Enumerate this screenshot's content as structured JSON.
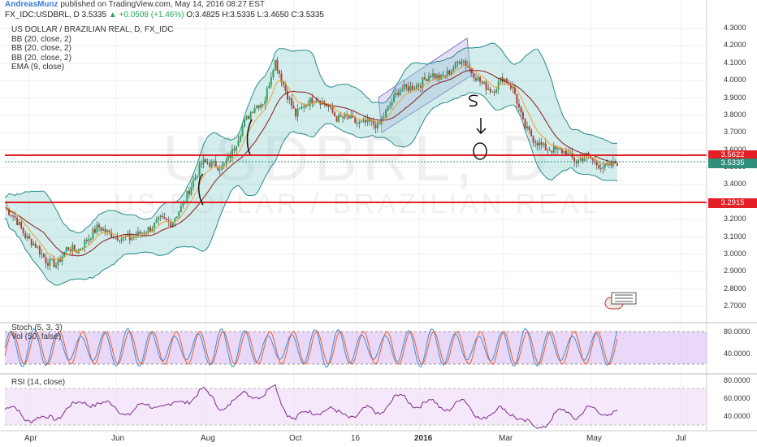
{
  "header": {
    "author": "AndreasMunz",
    "published": "published on TradingView.com, May 14, 2016 08:27 EST"
  },
  "symbol_line": {
    "symbol": "FX_IDC:USDBRL, D",
    "last": "3.5335",
    "change": "+0.0508 (+1.46%)",
    "ohlc": "O:3.4825 H:3.5335 L:3.4650 C:3.5335"
  },
  "legend": {
    "title": "US DOLLAR / BRAZILIAN REAL, D, FX_IDC",
    "bb1": "BB (20, close, 2)",
    "bb2": "BB (20, close, 2)",
    "bb3": "BB (20, close, 2)",
    "ema": "EMA (9, close)"
  },
  "watermark": {
    "big": "USDBRL, D",
    "small": "US DOLLAR / BRAZILIAN REAL"
  },
  "stoch": {
    "title": "Stoch (5, 3, 3)",
    "vol": "Vol (50, false)"
  },
  "rsi": {
    "title": "RSI (14, close)"
  },
  "colors": {
    "up": "#26a65b",
    "down": "#c0392b",
    "band": "#8fd3cf",
    "bandLine": "#2a8a8a",
    "ema": "#f0a030",
    "basis": "#8b1a1a",
    "hline": "#e31e24",
    "channel": "#b0a6e6",
    "stochK": "#3a8fd9",
    "stochD": "#e86030",
    "rsi": "#7b2d8e",
    "current": "#2f8f7a"
  },
  "chart_data": [
    {
      "type": "candlestick",
      "pane": "price",
      "ylim": [
        2.63,
        4.33
      ],
      "y_ticks": [
        "4.3000",
        "4.2000",
        "4.1000",
        "4.0000",
        "3.9000",
        "3.8000",
        "3.7000",
        "3.6000",
        "3.5000",
        "3.4000",
        "3.3000",
        "3.2000",
        "3.1000",
        "3.0000",
        "2.9000",
        "2.8000",
        "2.7000"
      ],
      "x_ticks": [
        "Apr",
        "Jun",
        "Aug",
        "Oct",
        "16",
        "2016",
        "Mar",
        "May",
        "Jul"
      ],
      "series_close": [
        [
          "2015-03-23",
          3.27
        ],
        [
          "2015-03-30",
          3.21
        ],
        [
          "2015-04-06",
          3.1
        ],
        [
          "2015-04-13",
          3.05
        ],
        [
          "2015-04-20",
          2.96
        ],
        [
          "2015-04-27",
          2.94
        ],
        [
          "2015-05-04",
          3.04
        ],
        [
          "2015-05-11",
          3.02
        ],
        [
          "2015-05-18",
          3.09
        ],
        [
          "2015-05-25",
          3.16
        ],
        [
          "2015-06-01",
          3.12
        ],
        [
          "2015-06-08",
          3.1
        ],
        [
          "2015-06-15",
          3.09
        ],
        [
          "2015-06-22",
          3.12
        ],
        [
          "2015-06-29",
          3.15
        ],
        [
          "2015-07-06",
          3.2
        ],
        [
          "2015-07-13",
          3.18
        ],
        [
          "2015-07-20",
          3.27
        ],
        [
          "2015-07-27",
          3.4
        ],
        [
          "2015-08-03",
          3.53
        ],
        [
          "2015-08-10",
          3.52
        ],
        [
          "2015-08-17",
          3.5
        ],
        [
          "2015-08-24",
          3.6
        ],
        [
          "2015-08-31",
          3.75
        ],
        [
          "2015-09-07",
          3.85
        ],
        [
          "2015-09-14",
          3.88
        ],
        [
          "2015-09-21",
          4.12
        ],
        [
          "2015-09-28",
          3.95
        ],
        [
          "2015-10-05",
          3.8
        ],
        [
          "2015-10-12",
          3.87
        ],
        [
          "2015-10-19",
          3.9
        ],
        [
          "2015-10-26",
          3.86
        ],
        [
          "2015-11-02",
          3.78
        ],
        [
          "2015-11-09",
          3.79
        ],
        [
          "2015-11-16",
          3.75
        ],
        [
          "2015-11-23",
          3.76
        ],
        [
          "2015-11-30",
          3.74
        ],
        [
          "2015-12-07",
          3.85
        ],
        [
          "2015-12-14",
          3.95
        ],
        [
          "2015-12-21",
          3.96
        ],
        [
          "2015-12-28",
          3.98
        ],
        [
          "2016-01-04",
          4.04
        ],
        [
          "2016-01-11",
          4.01
        ],
        [
          "2016-01-18",
          4.06
        ],
        [
          "2016-01-25",
          4.13
        ],
        [
          "2016-02-01",
          4.05
        ],
        [
          "2016-02-08",
          3.98
        ],
        [
          "2016-02-15",
          3.94
        ],
        [
          "2016-02-22",
          4.02
        ],
        [
          "2016-02-29",
          3.95
        ],
        [
          "2016-03-07",
          3.74
        ],
        [
          "2016-03-14",
          3.66
        ],
        [
          "2016-03-21",
          3.61
        ],
        [
          "2016-03-28",
          3.6
        ],
        [
          "2016-04-04",
          3.59
        ],
        [
          "2016-04-11",
          3.53
        ],
        [
          "2016-04-18",
          3.57
        ],
        [
          "2016-04-25",
          3.52
        ],
        [
          "2016-05-02",
          3.5
        ],
        [
          "2016-05-09",
          3.53
        ]
      ],
      "last_price": "3.5335",
      "annotations": {
        "resistance": "3.5622",
        "support": "3.2915"
      }
    },
    {
      "type": "line",
      "pane": "stoch",
      "y_ticks": [
        "80.0000",
        "40.0000"
      ]
    },
    {
      "type": "line",
      "pane": "rsi",
      "y_ticks": [
        "80.0000",
        "60.0000",
        "40.0000"
      ]
    }
  ]
}
